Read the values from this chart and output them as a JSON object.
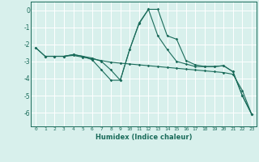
{
  "xlabel": "Humidex (Indice chaleur)",
  "ylabel": "",
  "bg_color": "#d8f0ec",
  "grid_color": "#ffffff",
  "line_color": "#1a6b5a",
  "xlim": [
    -0.5,
    23.5
  ],
  "ylim": [
    -6.8,
    0.5
  ],
  "curve1_x": [
    0,
    1,
    2,
    3,
    4,
    5,
    6,
    7,
    8,
    9,
    10,
    11,
    12,
    13,
    14,
    15,
    16,
    17,
    18,
    19,
    20,
    21,
    22,
    23
  ],
  "curve1_y": [
    -2.2,
    -2.7,
    -2.7,
    -2.7,
    -2.6,
    -2.7,
    -2.9,
    -3.5,
    -4.1,
    -4.1,
    -2.3,
    -0.8,
    0.05,
    0.05,
    -1.5,
    -1.7,
    -2.95,
    -3.2,
    -3.3,
    -3.3,
    -3.25,
    -3.6,
    -5.0,
    -6.1
  ],
  "curve2_x": [
    1,
    2,
    3,
    4,
    5,
    6,
    7,
    8,
    9,
    10,
    11,
    12,
    13,
    14,
    15,
    16,
    17,
    18,
    19,
    20,
    21,
    22,
    23
  ],
  "curve2_y": [
    -2.7,
    -2.7,
    -2.7,
    -2.6,
    -2.7,
    -2.8,
    -3.0,
    -3.5,
    -4.1,
    -2.3,
    -0.75,
    0.05,
    -1.5,
    -2.3,
    -3.0,
    -3.15,
    -3.3,
    -3.3,
    -3.3,
    -3.25,
    -3.6,
    -5.0,
    -6.1
  ],
  "curve3_x": [
    0,
    1,
    2,
    3,
    4,
    5,
    6,
    7,
    8,
    9,
    10,
    11,
    12,
    13,
    14,
    15,
    16,
    17,
    18,
    19,
    20,
    21,
    22,
    23
  ],
  "curve3_y": [
    -2.2,
    -2.7,
    -2.7,
    -2.7,
    -2.65,
    -2.75,
    -2.85,
    -2.95,
    -3.05,
    -3.1,
    -3.15,
    -3.2,
    -3.25,
    -3.3,
    -3.35,
    -3.4,
    -3.45,
    -3.5,
    -3.55,
    -3.6,
    -3.65,
    -3.75,
    -4.7,
    -6.1
  ]
}
